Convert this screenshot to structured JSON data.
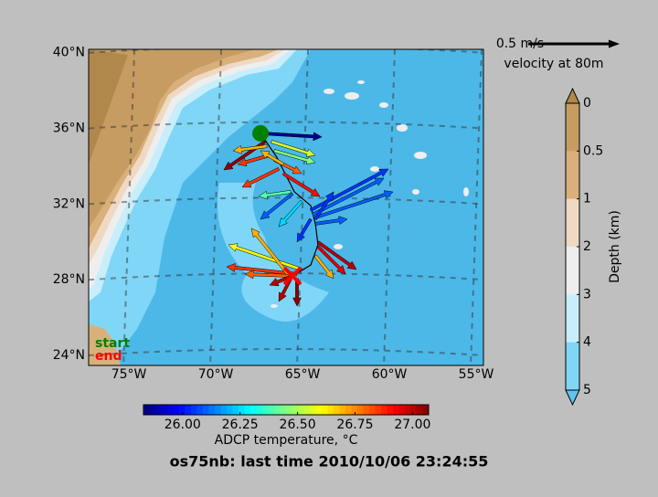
{
  "chart_data": {
    "type": "vector-map",
    "title": "os75nb: last time 2010/10/06 23:24:55",
    "xlim": [
      -77.32,
      -54.58
    ],
    "ylim": [
      23.47,
      40.18
    ],
    "xticks": [
      {
        "value": -75,
        "label": "75°W"
      },
      {
        "value": -70,
        "label": "70°W"
      },
      {
        "value": -65,
        "label": "65°W"
      },
      {
        "value": -60,
        "label": "60°W"
      },
      {
        "value": -55,
        "label": "55°W"
      }
    ],
    "yticks": [
      {
        "value": 24,
        "label": "24°N"
      },
      {
        "value": 28,
        "label": "28°N"
      },
      {
        "value": 32,
        "label": "32°N"
      },
      {
        "value": 36,
        "label": "36°N"
      },
      {
        "value": 40,
        "label": "40°N"
      }
    ],
    "grid": true,
    "scale_arrow": {
      "speed": 0.5,
      "label": "0.5 m/s",
      "caption": "velocity at 80m",
      "color": "#000000"
    },
    "legend": [
      {
        "name": "start",
        "color": "#008000"
      },
      {
        "name": "end",
        "color": "#ff0000"
      }
    ],
    "start": {
      "lon": -67.42,
      "lat": 35.74,
      "color": "#008000"
    },
    "end": {
      "lon": -65.58,
      "lat": 28.2,
      "color": "#ff0000"
    },
    "track": {
      "lon": [
        -67.42,
        -66.5,
        -65.47,
        -64.53,
        -64.26,
        -64.11,
        -64.53,
        -65.58
      ],
      "lat": [
        35.74,
        34.5,
        32.65,
        31.92,
        30.96,
        29.85,
        28.78,
        28.2
      ]
    },
    "vectors": {
      "lon": [
        -67.42,
        -67.16,
        -67.05,
        -66.79,
        -66.63,
        -66.89,
        -66.63,
        -66.11,
        -65.68,
        -65.58,
        -65.05,
        -64.53,
        -64.42,
        -64.26,
        -64.26,
        -64.53,
        -64.26,
        -64.11,
        -64.11,
        -64.26,
        -65.05,
        -65.32,
        -65.47,
        -65.58,
        -65.68,
        -65.32,
        -65.84,
        -66.11,
        -66.37
      ],
      "lat": [
        35.74,
        35.3,
        35.06,
        35.3,
        34.82,
        34.58,
        34.34,
        33.61,
        32.65,
        32.55,
        32.16,
        31.68,
        31.44,
        31.29,
        31.2,
        31.2,
        30.96,
        29.99,
        29.75,
        29.27,
        28.54,
        28.3,
        28.2,
        28.2,
        28.06,
        28.06,
        28.3,
        34.1,
        33.86
      ],
      "u": [
        0.335,
        -0.225,
        -0.185,
        0.24,
        0.225,
        -0.175,
        0.15,
        0.2,
        -0.175,
        -0.175,
        -0.125,
        0.425,
        0.39,
        0.425,
        0.1,
        -0.075,
        0.175,
        0.21,
        0.15,
        0.1,
        -0.4,
        -0.385,
        -0.27,
        -0.125,
        -0.065,
        0,
        -0.2,
        -0.125,
        -0.2
      ],
      "v": [
        -0.02,
        -0.155,
        -0.025,
        -0.075,
        -0.065,
        -0.05,
        -0.075,
        -0.125,
        -0.025,
        -0.14,
        -0.14,
        0.225,
        0.2,
        0.14,
        0.15,
        -0.125,
        0.025,
        -0.15,
        -0.15,
        -0.125,
        0.135,
        0.04,
        0.01,
        -0.05,
        -0.125,
        -0.15,
        0.25,
        0.075,
        -0.1
      ],
      "temp": [
        25.85,
        27.05,
        26.7,
        26.55,
        26.45,
        26.85,
        26.8,
        26.9,
        26.4,
        26.1,
        26.25,
        26.05,
        26.1,
        26.1,
        26.05,
        26.05,
        26.1,
        27.0,
        26.95,
        26.7,
        26.6,
        26.85,
        26.8,
        27.0,
        27.0,
        27.05,
        26.7,
        26.7,
        26.85
      ]
    },
    "temperature_colorbar": {
      "label": "ADCP temperature, °C",
      "clim": [
        25.83,
        27.07
      ],
      "ticks": [
        {
          "value": 26,
          "label": "26.00"
        },
        {
          "value": 26.25,
          "label": "26.25"
        },
        {
          "value": 26.5,
          "label": "26.50"
        },
        {
          "value": 26.75,
          "label": "26.75"
        },
        {
          "value": 27,
          "label": "27.00"
        }
      ]
    },
    "depth_colorbar": {
      "label": "Depth (km)",
      "levels": [
        0,
        0.5,
        1,
        2,
        3,
        4,
        5
      ],
      "colors": [
        "#c69c62",
        "#d9b07c",
        "#efd9c2",
        "#eeeeee",
        "#c8eefc",
        "#80d6f7"
      ],
      "extend_colors": [
        "#b0884c",
        "#5cc4ef"
      ]
    }
  }
}
